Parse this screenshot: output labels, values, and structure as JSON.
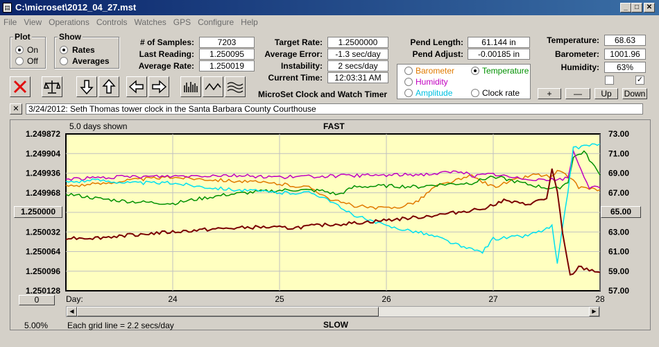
{
  "window": {
    "title": "C:\\microset\\2012_04_27.mst"
  },
  "menu": [
    "File",
    "View",
    "Operations",
    "Controls",
    "Watches",
    "GPS",
    "Configure",
    "Help"
  ],
  "plot_group": {
    "title": "Plot",
    "options": [
      "On",
      "Off"
    ],
    "selected": "On"
  },
  "show_group": {
    "title": "Show",
    "options": [
      "Rates",
      "Averages"
    ],
    "selected": "Rates"
  },
  "stats": {
    "samples_label": "# of Samples:",
    "samples": "7203",
    "last_label": "Last Reading:",
    "last": "1.250095",
    "avg_label": "Average Rate:",
    "avg": "1.250019",
    "target_label": "Target Rate:",
    "target": "1.2500000",
    "avgerr_label": "Average Error:",
    "avgerr": "-1.3 sec/day",
    "instab_label": "Instability:",
    "instab": "2 secs/day",
    "time_label": "Current Time:",
    "time": "12:03:31 AM",
    "pendlen_label": "Pend Length:",
    "pendlen": "61.144 in",
    "pendadj_label": "Pend Adjust:",
    "pendadj": "-0.00185 in",
    "temp_label": "Temperature:",
    "temp": "68.63",
    "baro_label": "Barometer:",
    "baro": "1001.96",
    "hum_label": "Humidity:",
    "hum": "63%"
  },
  "app_caption": "MicroSet Clock and Watch Timer",
  "overlay": {
    "options": [
      {
        "label": "Barometer",
        "color": "#e07a00",
        "selected": false
      },
      {
        "label": "Temperature",
        "color": "#009000",
        "selected": true
      },
      {
        "label": "Humidity",
        "color": "#c000c0",
        "selected": false
      },
      {
        "label": "Amplitude",
        "color": "#00c0e0",
        "selected": false
      },
      {
        "label": "Clock rate",
        "color": "#000000",
        "selected": false
      }
    ]
  },
  "scale_buttons": {
    "plus": "+",
    "minus": "—",
    "up": "Up",
    "down": "Down"
  },
  "checkboxes": [
    {
      "checked": false
    },
    {
      "checked": true
    }
  ],
  "note": {
    "close": "✕",
    "text": "3/24/2012: Seth Thomas tower clock in the Santa Barbara County Courthouse"
  },
  "plot": {
    "days_shown": "5.0 days shown",
    "top_label": "FAST",
    "bottom_label": "SLOW",
    "grid_note": "Each grid line = 2.2 secs/day",
    "zoom": "5.00%",
    "day_label": "Day:",
    "center_left": "1.250000",
    "center_right": "65.00",
    "left_button": "0",
    "icons": [
      "reject-icon",
      "balance-icon",
      "arrow-down-icon",
      "arrow-up-icon",
      "arrow-left-icon",
      "arrow-right-icon",
      "bars-icon",
      "wave-icon",
      "multiwave-icon"
    ]
  },
  "chart_data": {
    "type": "line",
    "title": "",
    "xlabel": "Day",
    "x_ticks": [
      24,
      25,
      26,
      27,
      28
    ],
    "xlim": [
      23,
      28
    ],
    "y_left_ticks": [
      "1.249872",
      "1.249904",
      "1.249936",
      "1.249968",
      "1.250000",
      "1.250032",
      "1.250064",
      "1.250096",
      "1.250128"
    ],
    "y_left_range": [
      1.250128,
      1.249872
    ],
    "y_right_ticks": [
      "73.00",
      "71.00",
      "69.00",
      "67.00",
      "65.00",
      "63.00",
      "61.00",
      "59.00",
      "57.00"
    ],
    "y_right_range": [
      57,
      73
    ],
    "series": [
      {
        "name": "Barometer",
        "color": "#e07a00",
        "points": [
          [
            23,
            67.7
          ],
          [
            23.3,
            67.9
          ],
          [
            23.6,
            68.3
          ],
          [
            24,
            68.6
          ],
          [
            24.3,
            68.4
          ],
          [
            24.6,
            68.2
          ],
          [
            25,
            67.9
          ],
          [
            25.3,
            67.5
          ],
          [
            25.5,
            66.2
          ],
          [
            25.7,
            65.7
          ],
          [
            25.9,
            65.4
          ],
          [
            26.1,
            65.5
          ],
          [
            26.3,
            66.2
          ],
          [
            26.45,
            67.6
          ],
          [
            26.6,
            68.1
          ],
          [
            26.8,
            68.7
          ],
          [
            27,
            67.6
          ],
          [
            27.2,
            68.3
          ],
          [
            27.4,
            68.9
          ],
          [
            27.55,
            68.6
          ],
          [
            27.6,
            69.2
          ],
          [
            27.7,
            68.7
          ],
          [
            27.8,
            67.6
          ],
          [
            28,
            67.3
          ]
        ]
      },
      {
        "name": "Temperature",
        "color": "#009000",
        "points": [
          [
            23,
            66.9
          ],
          [
            23.3,
            66.4
          ],
          [
            23.6,
            66.1
          ],
          [
            24,
            65.9
          ],
          [
            24.2,
            66.3
          ],
          [
            24.5,
            66.8
          ],
          [
            24.8,
            67.1
          ],
          [
            25.1,
            67.3
          ],
          [
            25.4,
            67.2
          ],
          [
            25.55,
            66.8
          ],
          [
            25.7,
            67.6
          ],
          [
            26,
            67.7
          ],
          [
            26.3,
            67.6
          ],
          [
            26.45,
            67.8
          ],
          [
            26.8,
            68.0
          ],
          [
            27,
            68.7
          ],
          [
            27.3,
            67.9
          ],
          [
            27.5,
            67.5
          ],
          [
            27.6,
            67.4
          ],
          [
            27.7,
            68.1
          ],
          [
            27.75,
            70.6
          ],
          [
            27.85,
            71.2
          ],
          [
            28,
            68.8
          ]
        ]
      },
      {
        "name": "Humidity",
        "color": "#c000c0",
        "points": [
          [
            23,
            68.4
          ],
          [
            23.5,
            68.6
          ],
          [
            24,
            68.7
          ],
          [
            24.5,
            68.8
          ],
          [
            25,
            68.6
          ],
          [
            25.5,
            68.7
          ],
          [
            26,
            68.8
          ],
          [
            26.4,
            68.9
          ],
          [
            26.7,
            69.2
          ],
          [
            26.8,
            68.7
          ],
          [
            27,
            68.9
          ],
          [
            27.2,
            68.5
          ],
          [
            27.4,
            68.4
          ],
          [
            27.6,
            68.3
          ],
          [
            27.7,
            68.5
          ],
          [
            27.75,
            71.2
          ],
          [
            27.9,
            67.5
          ],
          [
            28,
            67.5
          ]
        ]
      },
      {
        "name": "Amplitude",
        "color": "#00e0f0",
        "points": [
          [
            23,
            68.1
          ],
          [
            23.3,
            68.3
          ],
          [
            23.6,
            68.0
          ],
          [
            24,
            68.0
          ],
          [
            24.3,
            67.6
          ],
          [
            24.6,
            67.3
          ],
          [
            25,
            67.0
          ],
          [
            25.3,
            67.0
          ],
          [
            25.45,
            66.4
          ],
          [
            25.6,
            65.2
          ],
          [
            25.8,
            64.3
          ],
          [
            26,
            63.6
          ],
          [
            26.3,
            63.0
          ],
          [
            26.5,
            62.4
          ],
          [
            26.75,
            61.3
          ],
          [
            26.9,
            61.0
          ],
          [
            27,
            62.3
          ],
          [
            27.3,
            62.6
          ],
          [
            27.5,
            63.3
          ],
          [
            27.55,
            63.6
          ],
          [
            27.6,
            59.7
          ],
          [
            27.7,
            67.2
          ],
          [
            27.75,
            71.5
          ],
          [
            27.85,
            71.8
          ],
          [
            28,
            72.0
          ]
        ]
      },
      {
        "name": "Clock rate",
        "color": "#7a0000",
        "points": [
          [
            23,
            62.4
          ],
          [
            23.3,
            62.4
          ],
          [
            23.6,
            62.7
          ],
          [
            24,
            63.0
          ],
          [
            24.4,
            63.3
          ],
          [
            24.8,
            63.5
          ],
          [
            25.1,
            63.4
          ],
          [
            25.4,
            63.7
          ],
          [
            25.7,
            63.9
          ],
          [
            26,
            64.2
          ],
          [
            26.3,
            64.5
          ],
          [
            26.6,
            64.9
          ],
          [
            26.9,
            65.4
          ],
          [
            27.1,
            66.2
          ],
          [
            27.3,
            65.8
          ],
          [
            27.5,
            66.4
          ],
          [
            27.55,
            69.4
          ],
          [
            27.6,
            67.0
          ],
          [
            27.65,
            62.8
          ],
          [
            27.72,
            58.5
          ],
          [
            27.8,
            59.4
          ],
          [
            28,
            58.9
          ]
        ]
      }
    ]
  }
}
